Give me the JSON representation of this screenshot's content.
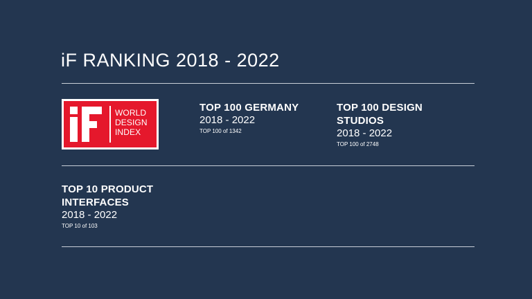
{
  "page": {
    "title": "iF RANKING 2018 - 2022"
  },
  "logo": {
    "mark": "iF",
    "lines": [
      "WORLD",
      "DESIGN",
      "INDEX"
    ],
    "colors": {
      "brand_red": "#e5182c",
      "frame": "#ffffff"
    }
  },
  "rankings": [
    {
      "heading_lines": [
        "TOP 100 GERMANY"
      ],
      "period": "2018 - 2022",
      "note": "TOP 100 of 1342"
    },
    {
      "heading_lines": [
        "TOP 100 DESIGN",
        "STUDIOS"
      ],
      "period": "2018 - 2022",
      "note": "TOP 100 of 2748"
    },
    {
      "heading_lines": [
        "TOP 10 PRODUCT",
        "INTERFACES"
      ],
      "period": "2018 - 2022",
      "note": "TOP 10 of 103"
    }
  ],
  "colors": {
    "background": "#233650",
    "text": "#ffffff",
    "divider": "#c9d0d9"
  }
}
